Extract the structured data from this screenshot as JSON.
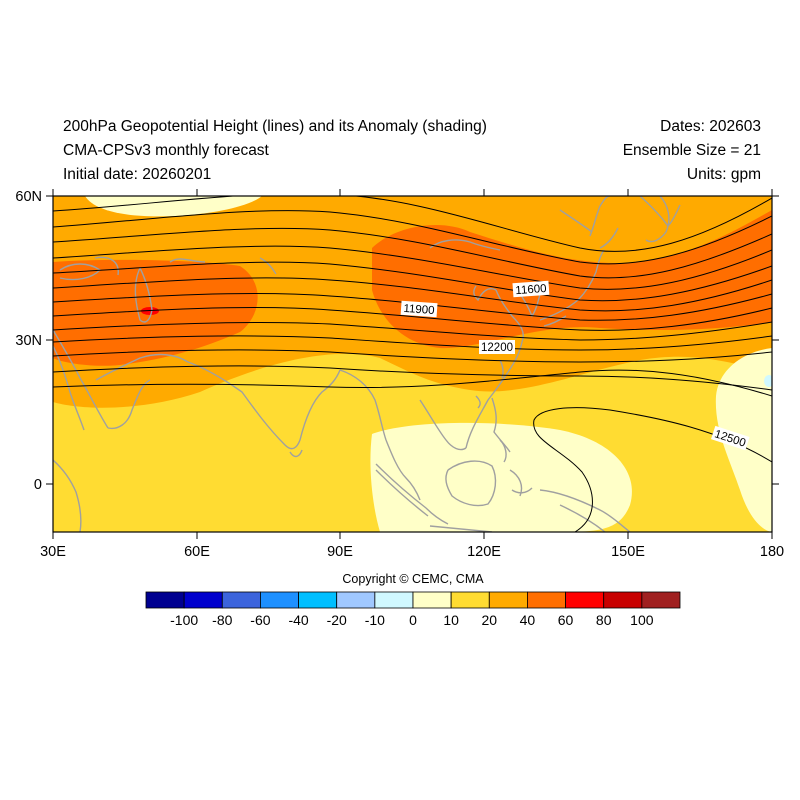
{
  "header": {
    "title_line1": "200hPa Geopotential Height (lines) and its Anomaly (shading)",
    "title_line2": "CMA-CPSv3 monthly forecast",
    "title_line3": "Initial date: 20260201",
    "dates": "Dates: 202603",
    "ensemble": "Ensemble Size = 21",
    "units": "Units: gpm"
  },
  "axes": {
    "lat_labels": [
      "60N",
      "30N",
      "0"
    ],
    "lon_labels": [
      "30E",
      "60E",
      "90E",
      "120E",
      "150E",
      "180"
    ],
    "lon_range": [
      30,
      180
    ],
    "lat_range": [
      -10,
      60
    ]
  },
  "contour_labels": [
    "11900",
    "11600",
    "12200",
    "12500"
  ],
  "copyright": "Copyright © CEMC, CMA",
  "colorbar": {
    "labels": [
      "-100",
      "-80",
      "-60",
      "-40",
      "-20",
      "-10",
      "0",
      "10",
      "20",
      "40",
      "60",
      "80",
      "100"
    ],
    "colors": [
      "#000090",
      "#0000cd",
      "#3c64dc",
      "#1e90ff",
      "#00bfff",
      "#a0c8ff",
      "#d0f8ff",
      "#ffffc8",
      "#ffdc32",
      "#ffaa00",
      "#ff6e00",
      "#ff0000",
      "#c80000",
      "#a02020"
    ]
  },
  "colors": {
    "land_outline": "#a0a0a0",
    "contour_line": "#000000"
  }
}
